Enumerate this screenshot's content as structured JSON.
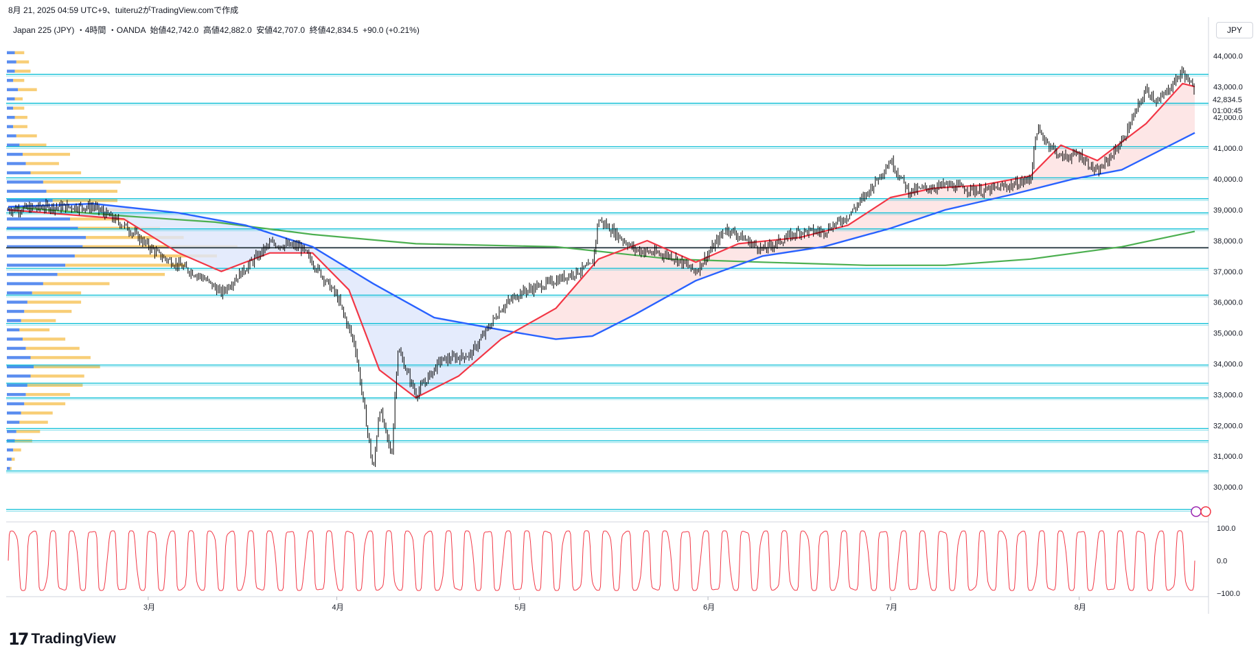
{
  "header": {
    "timestamp_credit": "8月 21, 2025 04:59 UTC+9、tuiteru2がTradingView.comで作成"
  },
  "legend": {
    "symbol": "Japan 225 (JPY)",
    "interval": "4時間",
    "source": "OANDA",
    "open_label": "始値",
    "open": "42,742.0",
    "high_label": "高値",
    "high": "42,882.0",
    "low_label": "安値",
    "low": "42,707.0",
    "close_label": "終値",
    "close": "42,834.5",
    "change": "+90.0 (+0.21%)"
  },
  "currency": "JPY",
  "price_badge": {
    "price": "42,834.5",
    "countdown": "01:00:45"
  },
  "branding": {
    "logo_text": "TradingView",
    "logo_mark": "17"
  },
  "colors": {
    "candle": "#000000",
    "ema_fast": "#f23645",
    "ema_slow": "#2962ff",
    "ma_long": "#4caf50",
    "hline": "#00bcd4",
    "hline_dark": "#37474f",
    "vp_up": "#5b8def",
    "vp_down": "#f7c55f",
    "fill_up": "#fde0e0",
    "fill_down": "#dde6fb",
    "oscillator": "#f23645"
  },
  "chart_data": [
    {
      "type": "candlestick",
      "title": "",
      "y_axis": {
        "ylim": [
          29000,
          44700
        ],
        "ticks": [
          "30,000.0",
          "31,000.0",
          "32,000.0",
          "33,000.0",
          "34,000.0",
          "35,000.0",
          "36,000.0",
          "37,000.0",
          "38,000.0",
          "39,000.0",
          "40,000.0",
          "41,000.0",
          "42,000.0",
          "43,000.0",
          "44,000.0"
        ]
      },
      "x_axis": {
        "months": [
          "3月",
          "4月",
          "5月",
          "6月",
          "7月",
          "8月"
        ]
      },
      "price_path": [
        [
          "2025-02-06",
          39000
        ],
        [
          "2025-02-13",
          39100
        ],
        [
          "2025-02-20",
          39100
        ],
        [
          "2025-02-25",
          38500
        ],
        [
          "2025-03-03",
          37500
        ],
        [
          "2025-03-10",
          36800
        ],
        [
          "2025-03-13",
          36300
        ],
        [
          "2025-03-17",
          37100
        ],
        [
          "2025-03-21",
          37900
        ],
        [
          "2025-03-26",
          37800
        ],
        [
          "2025-03-28",
          37300
        ],
        [
          "2025-04-01",
          36200
        ],
        [
          "2025-04-04",
          34600
        ],
        [
          "2025-04-07",
          30500
        ],
        [
          "2025-04-08",
          32600
        ],
        [
          "2025-04-10",
          31000
        ],
        [
          "2025-04-11",
          34500
        ],
        [
          "2025-04-14",
          33000
        ],
        [
          "2025-04-18",
          34100
        ],
        [
          "2025-04-23",
          34300
        ],
        [
          "2025-04-28",
          35800
        ],
        [
          "2025-05-01",
          36300
        ],
        [
          "2025-05-07",
          36700
        ],
        [
          "2025-05-13",
          37200
        ],
        [
          "2025-05-14",
          38700
        ],
        [
          "2025-05-20",
          37700
        ],
        [
          "2025-05-26",
          37500
        ],
        [
          "2025-05-30",
          37000
        ],
        [
          "2025-06-04",
          38400
        ],
        [
          "2025-06-10",
          37700
        ],
        [
          "2025-06-16",
          38300
        ],
        [
          "2025-06-20",
          38300
        ],
        [
          "2025-06-24",
          38800
        ],
        [
          "2025-06-27",
          39500
        ],
        [
          "2025-07-01",
          40600
        ],
        [
          "2025-07-04",
          39600
        ],
        [
          "2025-07-10",
          39800
        ],
        [
          "2025-07-16",
          39600
        ],
        [
          "2025-07-21",
          39800
        ],
        [
          "2025-07-24",
          40000
        ],
        [
          "2025-07-25",
          41600
        ],
        [
          "2025-07-29",
          40700
        ],
        [
          "2025-08-01",
          40800
        ],
        [
          "2025-08-04",
          40200
        ],
        [
          "2025-08-08",
          41200
        ],
        [
          "2025-08-12",
          42900
        ],
        [
          "2025-08-14",
          42500
        ],
        [
          "2025-08-18",
          43500
        ],
        [
          "2025-08-20",
          42834.5
        ]
      ],
      "ema_fast": [
        [
          "2025-02-06",
          39000
        ],
        [
          "2025-02-25",
          38700
        ],
        [
          "2025-03-06",
          37600
        ],
        [
          "2025-03-13",
          37000
        ],
        [
          "2025-03-21",
          37600
        ],
        [
          "2025-03-28",
          37600
        ],
        [
          "2025-04-03",
          36400
        ],
        [
          "2025-04-08",
          33800
        ],
        [
          "2025-04-14",
          32900
        ],
        [
          "2025-04-21",
          33600
        ],
        [
          "2025-04-28",
          34800
        ],
        [
          "2025-05-07",
          35800
        ],
        [
          "2025-05-14",
          37400
        ],
        [
          "2025-05-22",
          38000
        ],
        [
          "2025-05-30",
          37300
        ],
        [
          "2025-06-06",
          37900
        ],
        [
          "2025-06-16",
          38100
        ],
        [
          "2025-06-24",
          38500
        ],
        [
          "2025-07-01",
          39400
        ],
        [
          "2025-07-08",
          39700
        ],
        [
          "2025-07-16",
          39800
        ],
        [
          "2025-07-24",
          40100
        ],
        [
          "2025-07-29",
          41100
        ],
        [
          "2025-08-04",
          40600
        ],
        [
          "2025-08-12",
          41800
        ],
        [
          "2025-08-18",
          43100
        ],
        [
          "2025-08-20",
          43000
        ]
      ],
      "ema_slow": [
        [
          "2025-02-06",
          39100
        ],
        [
          "2025-02-20",
          39200
        ],
        [
          "2025-03-06",
          38900
        ],
        [
          "2025-03-17",
          38500
        ],
        [
          "2025-03-28",
          37800
        ],
        [
          "2025-04-07",
          36600
        ],
        [
          "2025-04-17",
          35500
        ],
        [
          "2025-04-28",
          35100
        ],
        [
          "2025-05-07",
          34800
        ],
        [
          "2025-05-13",
          34900
        ],
        [
          "2025-05-20",
          35600
        ],
        [
          "2025-05-30",
          36700
        ],
        [
          "2025-06-10",
          37500
        ],
        [
          "2025-06-20",
          37800
        ],
        [
          "2025-07-01",
          38400
        ],
        [
          "2025-07-10",
          39000
        ],
        [
          "2025-07-21",
          39500
        ],
        [
          "2025-07-31",
          40000
        ],
        [
          "2025-08-08",
          40300
        ],
        [
          "2025-08-20",
          41500
        ]
      ],
      "ma_long": [
        [
          "2025-02-06",
          39100
        ],
        [
          "2025-02-25",
          38800
        ],
        [
          "2025-03-12",
          38600
        ],
        [
          "2025-03-28",
          38200
        ],
        [
          "2025-04-14",
          37900
        ],
        [
          "2025-05-07",
          37800
        ],
        [
          "2025-05-26",
          37400
        ],
        [
          "2025-06-10",
          37300
        ],
        [
          "2025-06-27",
          37200
        ],
        [
          "2025-07-10",
          37200
        ],
        [
          "2025-07-24",
          37400
        ],
        [
          "2025-08-08",
          37800
        ],
        [
          "2025-08-20",
          38300
        ]
      ],
      "horizontal_levels": [
        43400,
        42460,
        41050,
        40040,
        39360,
        38900,
        38380,
        37770,
        37100,
        36230,
        35310,
        33960,
        33370,
        32890,
        31900,
        31500,
        30520,
        29270
      ],
      "volume_profile": [
        [
          44100,
          0.1,
          0.12
        ],
        [
          43800,
          0.12,
          0.16
        ],
        [
          43500,
          0.1,
          0.2
        ],
        [
          43200,
          0.08,
          0.14
        ],
        [
          42900,
          0.14,
          0.24
        ],
        [
          42600,
          0.1,
          0.1
        ],
        [
          42300,
          0.08,
          0.14
        ],
        [
          42000,
          0.1,
          0.16
        ],
        [
          41700,
          0.08,
          0.18
        ],
        [
          41400,
          0.12,
          0.26
        ],
        [
          41100,
          0.16,
          0.34
        ],
        [
          40800,
          0.2,
          0.6
        ],
        [
          40500,
          0.24,
          0.42
        ],
        [
          40200,
          0.3,
          0.64
        ],
        [
          39900,
          0.46,
          0.98
        ],
        [
          39600,
          0.5,
          0.9
        ],
        [
          39300,
          0.58,
          0.82
        ],
        [
          39000,
          0.72,
          0.84
        ],
        [
          38700,
          0.8,
          0.74
        ],
        [
          38400,
          0.9,
          1.04
        ],
        [
          38100,
          1.0,
          1.24
        ],
        [
          37800,
          0.96,
          1.96
        ],
        [
          37500,
          0.86,
          1.8
        ],
        [
          37200,
          0.74,
          1.52
        ],
        [
          36900,
          0.64,
          1.36
        ],
        [
          36600,
          0.46,
          0.84
        ],
        [
          36300,
          0.32,
          0.62
        ],
        [
          36000,
          0.26,
          0.68
        ],
        [
          35700,
          0.22,
          0.6
        ],
        [
          35400,
          0.18,
          0.44
        ],
        [
          35100,
          0.16,
          0.38
        ],
        [
          34800,
          0.2,
          0.54
        ],
        [
          34500,
          0.24,
          0.68
        ],
        [
          34200,
          0.3,
          0.76
        ],
        [
          33900,
          0.34,
          0.84
        ],
        [
          33600,
          0.3,
          0.68
        ],
        [
          33300,
          0.26,
          0.7
        ],
        [
          33000,
          0.24,
          0.56
        ],
        [
          32700,
          0.22,
          0.52
        ],
        [
          32400,
          0.18,
          0.4
        ],
        [
          32100,
          0.16,
          0.36
        ],
        [
          31800,
          0.12,
          0.3
        ],
        [
          31500,
          0.1,
          0.22
        ],
        [
          31200,
          0.08,
          0.1
        ],
        [
          30900,
          0.06,
          0.04
        ],
        [
          30600,
          0.04,
          0.02
        ]
      ]
    },
    {
      "type": "line",
      "title": "",
      "y_axis": {
        "ylim": [
          -100,
          100
        ],
        "ticks": [
          "100.0",
          "0.0",
          "−100.0"
        ]
      },
      "cycles": 60
    }
  ]
}
